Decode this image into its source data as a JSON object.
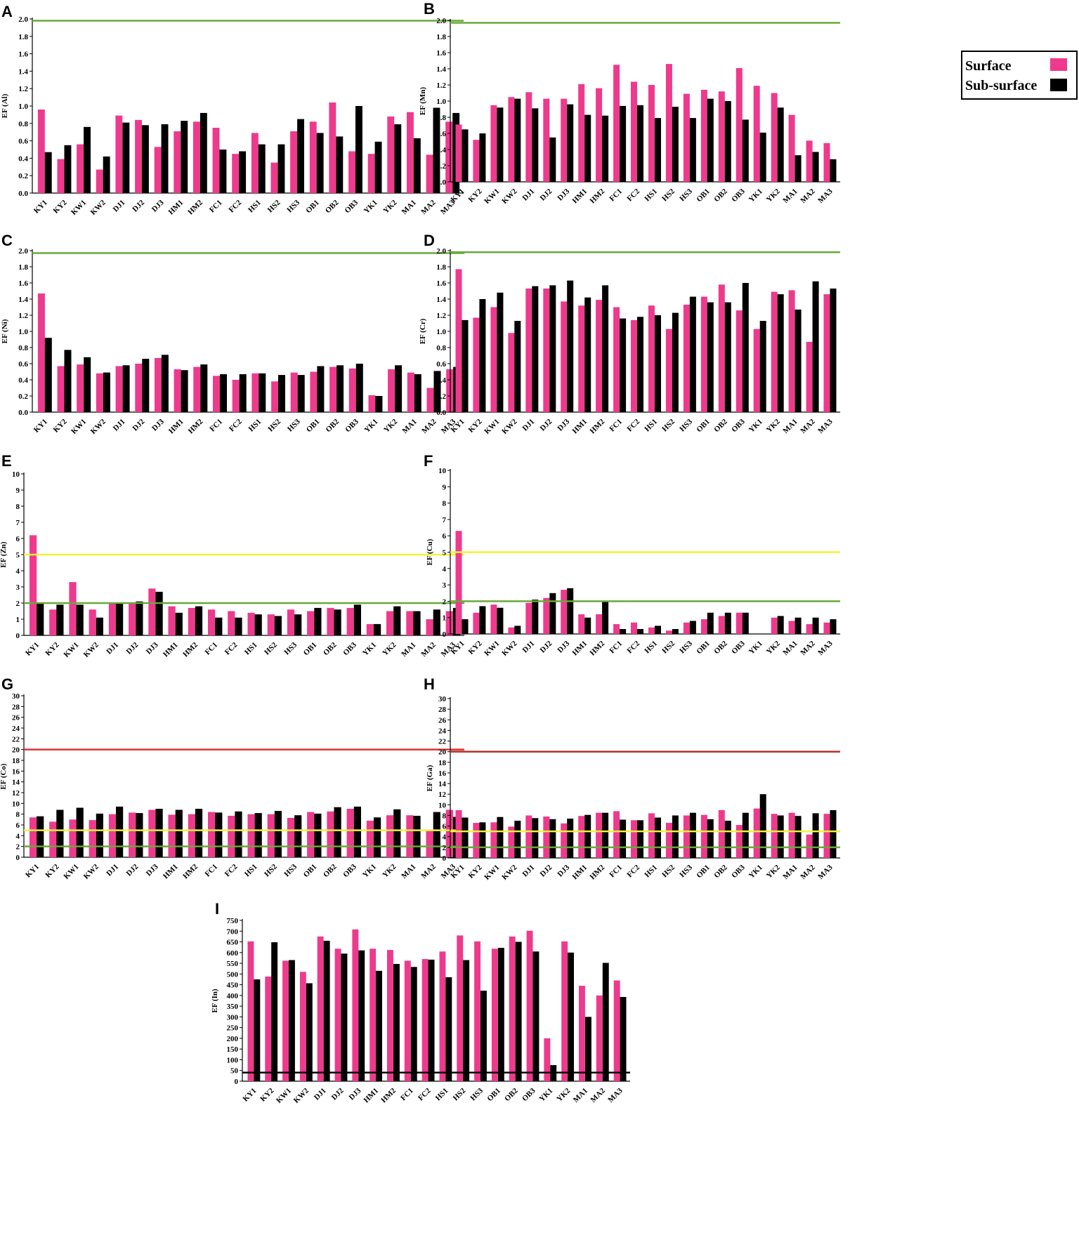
{
  "colors": {
    "surface": "#ee3a8c",
    "subsurface": "#000000",
    "green": "#6aa83a",
    "yellow": "#f2f23a",
    "red": "#e23030",
    "darkred": "#b0302a",
    "black_line": "#000000"
  },
  "legend": {
    "position": "top-right",
    "surface_label": "Surface",
    "subsurface_label": "Sub-surface"
  },
  "chart_data": [
    {
      "panel": "A",
      "type": "bar",
      "ylabel": "EF (Al)",
      "ylim": [
        0,
        2.0
      ],
      "yticks": [
        "0.0",
        "0.2",
        "0.4",
        "0.6",
        "0.8",
        "1.0",
        "1.2",
        "1.4",
        "1.6",
        "1.8",
        "2.0"
      ],
      "categories": [
        "KY1",
        "KY2",
        "KW1",
        "KW2",
        "DJ1",
        "DJ2",
        "DJ3",
        "HM1",
        "HM2",
        "FC1",
        "FC2",
        "HS1",
        "HS2",
        "HS3",
        "OB1",
        "OB2",
        "OB3",
        "YK1",
        "YK2",
        "MA1",
        "MA2",
        "MA3"
      ],
      "series": [
        {
          "name": "Surface",
          "values": [
            0.96,
            0.39,
            0.56,
            0.27,
            0.89,
            0.84,
            0.53,
            0.71,
            0.82,
            0.75,
            0.45,
            0.69,
            0.35,
            0.71,
            0.82,
            1.04,
            0.48,
            0.45,
            0.88,
            0.93,
            0.44,
            0.82
          ]
        },
        {
          "name": "Sub-surface",
          "values": [
            0.47,
            0.55,
            0.76,
            0.42,
            0.81,
            0.78,
            0.79,
            0.83,
            0.92,
            0.5,
            0.48,
            0.56,
            0.56,
            0.85,
            0.69,
            0.65,
            1.0,
            0.59,
            0.79,
            0.63,
            0.98,
            0.92
          ]
        }
      ],
      "reference_lines": [
        {
          "value": 1.98,
          "color": "green"
        }
      ]
    },
    {
      "panel": "B",
      "type": "bar",
      "ylabel": "EF (Mn)",
      "ylim": [
        0,
        2.0
      ],
      "yticks": [
        "0.0",
        "0.2",
        "0.4",
        "0.6",
        "0.8",
        "1.0",
        "1.2",
        "1.4",
        "1.6",
        "1.8",
        "2.0"
      ],
      "categories": [
        "KY1",
        "KY2",
        "KW1",
        "KW2",
        "DJ1",
        "DJ2",
        "DJ3",
        "HM1",
        "HM2",
        "FC1",
        "FC2",
        "HS1",
        "HS2",
        "HS3",
        "OB1",
        "OB2",
        "OB3",
        "YK1",
        "YK2",
        "MA1",
        "MA2",
        "MA3"
      ],
      "series": [
        {
          "name": "Surface",
          "values": [
            0.71,
            0.52,
            0.95,
            1.05,
            1.11,
            1.03,
            1.03,
            1.21,
            1.16,
            1.45,
            1.24,
            1.2,
            1.46,
            1.09,
            1.14,
            1.12,
            1.41,
            1.19,
            1.1,
            0.83,
            0.51,
            0.48
          ]
        },
        {
          "name": "Sub-surface",
          "values": [
            0.65,
            0.6,
            0.92,
            1.03,
            0.91,
            0.55,
            0.96,
            0.83,
            0.82,
            0.94,
            0.95,
            0.79,
            0.93,
            0.79,
            1.03,
            1.0,
            0.77,
            0.61,
            0.92,
            0.33,
            0.37,
            0.28
          ]
        }
      ],
      "reference_lines": [
        {
          "value": 1.97,
          "color": "green"
        }
      ]
    },
    {
      "panel": "C",
      "type": "bar",
      "ylabel": "EF (Ni)",
      "ylim": [
        0,
        2.0
      ],
      "yticks": [
        "0.0",
        "0.2",
        "0.4",
        "0.6",
        "0.8",
        "1.0",
        "1.2",
        "1.4",
        "1.6",
        "1.8",
        "2.0"
      ],
      "categories": [
        "KY1",
        "KY2",
        "KW1",
        "KW2",
        "DJ1",
        "DJ2",
        "DJ3",
        "HM1",
        "HM2",
        "FC1",
        "FC2",
        "HS1",
        "HS2",
        "HS3",
        "OB1",
        "OB2",
        "OB3",
        "YK1",
        "YK2",
        "MA1",
        "MA2",
        "MA3"
      ],
      "series": [
        {
          "name": "Surface",
          "values": [
            1.47,
            0.57,
            0.59,
            0.48,
            0.57,
            0.6,
            0.67,
            0.53,
            0.56,
            0.45,
            0.4,
            0.48,
            0.38,
            0.49,
            0.5,
            0.56,
            0.54,
            0.21,
            0.53,
            0.49,
            0.3,
            0.53
          ]
        },
        {
          "name": "Sub-surface",
          "values": [
            0.92,
            0.77,
            0.68,
            0.49,
            0.58,
            0.66,
            0.71,
            0.52,
            0.59,
            0.47,
            0.47,
            0.48,
            0.46,
            0.46,
            0.57,
            0.58,
            0.6,
            0.2,
            0.58,
            0.47,
            0.51,
            0.56
          ]
        }
      ],
      "reference_lines": [
        {
          "value": 1.97,
          "color": "green"
        }
      ]
    },
    {
      "panel": "D",
      "type": "bar",
      "ylabel": "EF (Cr)",
      "ylim": [
        0,
        2.0
      ],
      "yticks": [
        "0.0",
        "0.2",
        "0.4",
        "0.6",
        "0.8",
        "1.0",
        "1.2",
        "1.4",
        "1.6",
        "1.8",
        "2.0"
      ],
      "categories": [
        "KY1",
        "KY2",
        "KW1",
        "KW2",
        "DJ1",
        "DJ2",
        "DJ3",
        "HM1",
        "HM2",
        "FC1",
        "FC2",
        "HS1",
        "HS2",
        "HS3",
        "OB1",
        "OB2",
        "OB3",
        "YK1",
        "YK2",
        "MA1",
        "MA2",
        "MA3"
      ],
      "series": [
        {
          "name": "Surface",
          "values": [
            1.77,
            1.17,
            1.3,
            0.98,
            1.53,
            1.53,
            1.37,
            1.32,
            1.39,
            1.3,
            1.14,
            1.32,
            1.03,
            1.33,
            1.43,
            1.58,
            1.26,
            1.03,
            1.49,
            1.51,
            0.87,
            1.46
          ]
        },
        {
          "name": "Sub-surface",
          "values": [
            1.14,
            1.4,
            1.48,
            1.13,
            1.56,
            1.57,
            1.63,
            1.42,
            1.57,
            1.16,
            1.18,
            1.2,
            1.23,
            1.43,
            1.36,
            1.36,
            1.6,
            1.13,
            1.46,
            1.27,
            1.62,
            1.53
          ]
        }
      ],
      "reference_lines": [
        {
          "value": 1.98,
          "color": "green"
        }
      ]
    },
    {
      "panel": "E",
      "type": "bar",
      "ylabel": "EF (Zn)",
      "ylim": [
        0,
        10
      ],
      "yticks": [
        "0",
        "1",
        "2",
        "3",
        "4",
        "5",
        "6",
        "7",
        "8",
        "9",
        "10"
      ],
      "categories": [
        "KY1",
        "KY2",
        "KW1",
        "KW2",
        "DJ1",
        "DJ2",
        "DJ3",
        "HM1",
        "HM2",
        "FC1",
        "FC2",
        "HS1",
        "HS2",
        "HS3",
        "OB1",
        "OB2",
        "OB3",
        "YK1",
        "YK2",
        "MA1",
        "MA2",
        "MA3"
      ],
      "series": [
        {
          "name": "Surface",
          "values": [
            6.2,
            1.6,
            3.3,
            1.6,
            2.0,
            2.0,
            2.9,
            1.8,
            1.7,
            1.6,
            1.5,
            1.4,
            1.3,
            1.6,
            1.5,
            1.7,
            1.7,
            0.7,
            1.5,
            1.5,
            1.0,
            1.5
          ]
        },
        {
          "name": "Sub-surface",
          "values": [
            2.0,
            1.9,
            1.9,
            1.1,
            2.0,
            2.1,
            2.7,
            1.4,
            1.8,
            1.1,
            1.1,
            1.3,
            1.2,
            1.3,
            1.7,
            1.6,
            1.9,
            0.7,
            1.8,
            1.5,
            1.6,
            1.7
          ]
        }
      ],
      "reference_lines": [
        {
          "value": 5.0,
          "color": "yellow"
        },
        {
          "value": 2.0,
          "color": "green"
        }
      ]
    },
    {
      "panel": "F",
      "type": "bar",
      "ylabel": "EF (Cu)",
      "ylim": [
        0,
        10
      ],
      "yticks": [
        "0",
        "1",
        "2",
        "3",
        "4",
        "5",
        "6",
        "7",
        "8",
        "9",
        "10"
      ],
      "categories": [
        "KY1",
        "KY2",
        "KW1",
        "KW2",
        "DJ1",
        "DJ2",
        "DJ3",
        "HM1",
        "HM2",
        "FC1",
        "FC2",
        "HS1",
        "HS2",
        "HS3",
        "OB1",
        "OB2",
        "OB3",
        "YK1",
        "YK2",
        "MA1",
        "MA2",
        "MA3"
      ],
      "series": [
        {
          "name": "Surface",
          "values": [
            6.3,
            1.3,
            1.8,
            0.4,
            1.9,
            2.2,
            2.7,
            1.2,
            1.2,
            0.6,
            0.7,
            0.4,
            0.2,
            0.7,
            0.9,
            1.1,
            1.3,
            0.0,
            1.0,
            0.8,
            0.6,
            0.7
          ]
        },
        {
          "name": "Sub-surface",
          "values": [
            0.9,
            1.7,
            1.6,
            0.5,
            2.1,
            2.5,
            2.8,
            1.0,
            2.0,
            0.3,
            0.3,
            0.5,
            0.3,
            0.8,
            1.3,
            1.3,
            1.3,
            0.0,
            1.1,
            1.0,
            1.0,
            0.9
          ]
        }
      ],
      "reference_lines": [
        {
          "value": 5.0,
          "color": "yellow"
        },
        {
          "value": 2.0,
          "color": "green"
        }
      ]
    },
    {
      "panel": "G",
      "type": "bar",
      "ylabel": "EF (Co)",
      "ylim": [
        0,
        30
      ],
      "yticks": [
        "0",
        "2",
        "4",
        "6",
        "8",
        "10",
        "12",
        "14",
        "16",
        "18",
        "20",
        "22",
        "24",
        "26",
        "28",
        "30"
      ],
      "categories": [
        "KY1",
        "KY2",
        "KW1",
        "KW2",
        "DJ1",
        "DJ2",
        "DJ3",
        "HM1",
        "HM2",
        "FC1",
        "FC2",
        "HS1",
        "HS2",
        "HS3",
        "OB1",
        "OB2",
        "OB3",
        "YK1",
        "YK2",
        "MA1",
        "MA2",
        "MA3"
      ],
      "series": [
        {
          "name": "Surface",
          "values": [
            7.4,
            6.6,
            7.0,
            6.9,
            8.0,
            8.3,
            8.8,
            7.9,
            8.0,
            8.4,
            7.7,
            8.0,
            8.0,
            7.3,
            8.4,
            8.5,
            9.0,
            6.8,
            7.8,
            7.8,
            5.1,
            8.8
          ]
        },
        {
          "name": "Sub-surface",
          "values": [
            7.6,
            8.8,
            9.2,
            8.1,
            9.4,
            8.2,
            9.0,
            8.8,
            9.0,
            8.3,
            8.5,
            8.2,
            8.6,
            7.8,
            8.1,
            9.3,
            9.4,
            7.4,
            8.9,
            7.7,
            8.4,
            7.5
          ]
        }
      ],
      "reference_lines": [
        {
          "value": 20,
          "color": "red"
        },
        {
          "value": 5,
          "color": "yellow"
        },
        {
          "value": 2,
          "color": "green"
        }
      ]
    },
    {
      "panel": "H",
      "type": "bar",
      "ylabel": "EF (Ga)",
      "ylim": [
        0,
        30
      ],
      "yticks": [
        "0",
        "2",
        "4",
        "6",
        "8",
        "10",
        "12",
        "14",
        "16",
        "18",
        "20",
        "22",
        "24",
        "26",
        "28",
        "30"
      ],
      "categories": [
        "KY1",
        "KY2",
        "KW1",
        "KW2",
        "DJ1",
        "DJ2",
        "DJ3",
        "HM1",
        "HM2",
        "FC1",
        "FC2",
        "HS1",
        "HS2",
        "HS3",
        "OB1",
        "OB2",
        "OB3",
        "YK1",
        "YK2",
        "MA1",
        "MA2",
        "MA3"
      ],
      "series": [
        {
          "name": "Surface",
          "values": [
            9.0,
            6.6,
            6.7,
            5.9,
            8.0,
            7.8,
            6.5,
            7.9,
            8.5,
            8.8,
            7.1,
            8.4,
            6.6,
            8.0,
            8.1,
            9.0,
            6.2,
            9.3,
            8.3,
            8.5,
            4.4,
            8.3
          ]
        },
        {
          "name": "Sub-surface",
          "values": [
            7.6,
            6.7,
            7.7,
            7.0,
            7.5,
            7.3,
            7.4,
            8.1,
            8.5,
            7.2,
            7.1,
            7.6,
            8.0,
            8.5,
            7.3,
            7.0,
            8.5,
            12.0,
            8.0,
            7.9,
            8.4,
            9.0
          ]
        }
      ],
      "reference_lines": [
        {
          "value": 20,
          "color": "darkred"
        },
        {
          "value": 5,
          "color": "yellow"
        },
        {
          "value": 2,
          "color": "green"
        }
      ]
    },
    {
      "panel": "I",
      "type": "bar",
      "ylabel": "EF (In)",
      "ylim": [
        0,
        750
      ],
      "yticks": [
        "0",
        "50",
        "100",
        "150",
        "200",
        "250",
        "300",
        "350",
        "400",
        "450",
        "500",
        "550",
        "600",
        "650",
        "700",
        "750"
      ],
      "categories": [
        "KY1",
        "KY2",
        "KW1",
        "KW2",
        "DJ1",
        "DJ2",
        "DJ3",
        "HM1",
        "HM2",
        "FC1",
        "FC2",
        "HS1",
        "HS2",
        "HS3",
        "OB1",
        "OB2",
        "OB3",
        "YK1",
        "YK2",
        "MA1",
        "MA2",
        "MA3"
      ],
      "series": [
        {
          "name": "Surface",
          "values": [
            652,
            488,
            562,
            510,
            675,
            618,
            708,
            618,
            612,
            562,
            570,
            605,
            680,
            652,
            618,
            675,
            702,
            200,
            652,
            445,
            400,
            470
          ]
        },
        {
          "name": "Sub-surface",
          "values": [
            475,
            648,
            565,
            457,
            655,
            595,
            610,
            515,
            547,
            533,
            567,
            485,
            565,
            422,
            622,
            650,
            605,
            75,
            600,
            300,
            552,
            393
          ]
        }
      ],
      "reference_lines": [
        {
          "value": 40,
          "color": "black_line"
        }
      ]
    }
  ]
}
